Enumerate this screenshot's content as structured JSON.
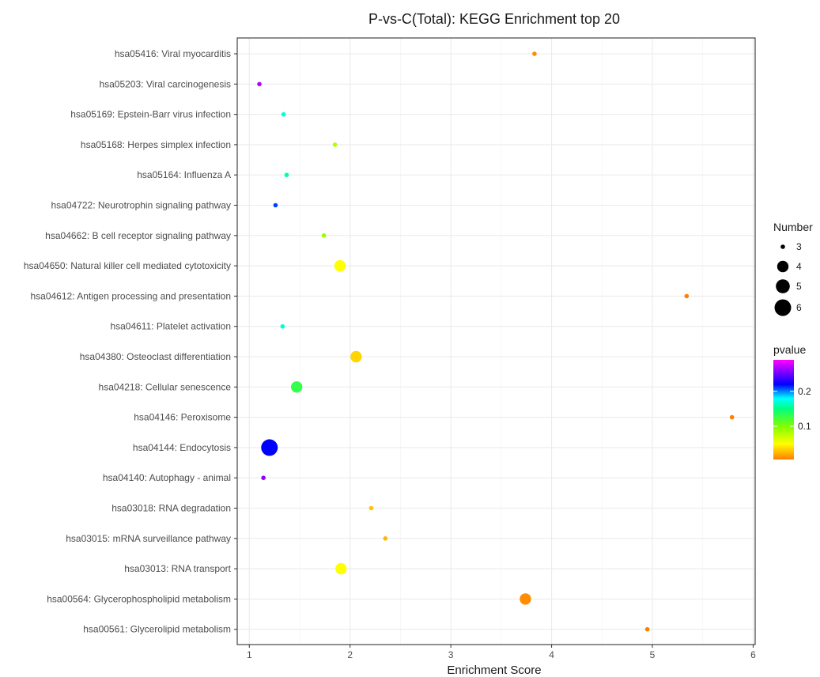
{
  "chart_data": {
    "type": "scatter",
    "title": "P-vs-C(Total): KEGG Enrichment top 20",
    "xlabel": "Enrichment Score",
    "ylabel": "",
    "xlim": [
      0.88,
      6.02
    ],
    "xticks": [
      1,
      2,
      3,
      4,
      5,
      6
    ],
    "grid": true,
    "categories": [
      "hsa05416: Viral myocarditis",
      "hsa05203: Viral carcinogenesis",
      "hsa05169: Epstein-Barr virus infection",
      "hsa05168: Herpes simplex infection",
      "hsa05164: Influenza A",
      "hsa04722: Neurotrophin signaling pathway",
      "hsa04662: B cell receptor signaling pathway",
      "hsa04650: Natural killer cell mediated cytotoxicity",
      "hsa04612: Antigen processing and presentation",
      "hsa04611: Platelet activation",
      "hsa04380: Osteoclast differentiation",
      "hsa04218: Cellular senescence",
      "hsa04146: Peroxisome",
      "hsa04144: Endocytosis",
      "hsa04140: Autophagy - animal",
      "hsa03018: RNA degradation",
      "hsa03015: mRNA surveillance pathway",
      "hsa03013: RNA transport",
      "hsa00564: Glycerophospholipid metabolism",
      "hsa00561: Glycerolipid metabolism"
    ],
    "points": [
      {
        "x": 3.83,
        "number": 3,
        "pvalue": 0.01
      },
      {
        "x": 1.1,
        "number": 3,
        "pvalue": 0.27
      },
      {
        "x": 1.34,
        "number": 3,
        "pvalue": 0.17
      },
      {
        "x": 1.85,
        "number": 3,
        "pvalue": 0.08
      },
      {
        "x": 1.37,
        "number": 3,
        "pvalue": 0.16
      },
      {
        "x": 1.26,
        "number": 3,
        "pvalue": 0.21
      },
      {
        "x": 1.74,
        "number": 3,
        "pvalue": 0.09
      },
      {
        "x": 1.9,
        "number": 4,
        "pvalue": 0.05
      },
      {
        "x": 5.34,
        "number": 3,
        "pvalue": 0.004
      },
      {
        "x": 1.33,
        "number": 3,
        "pvalue": 0.17
      },
      {
        "x": 2.06,
        "number": 4,
        "pvalue": 0.035
      },
      {
        "x": 1.47,
        "number": 4,
        "pvalue": 0.13
      },
      {
        "x": 5.79,
        "number": 3,
        "pvalue": 0.003
      },
      {
        "x": 1.2,
        "number": 6,
        "pvalue": 0.22
      },
      {
        "x": 1.14,
        "number": 3,
        "pvalue": 0.26
      },
      {
        "x": 2.21,
        "number": 3,
        "pvalue": 0.03
      },
      {
        "x": 2.35,
        "number": 3,
        "pvalue": 0.025
      },
      {
        "x": 1.91,
        "number": 4,
        "pvalue": 0.05
      },
      {
        "x": 3.74,
        "number": 4,
        "pvalue": 0.01
      },
      {
        "x": 4.95,
        "number": 3,
        "pvalue": 0.005
      }
    ],
    "size_legend": {
      "title": "Number",
      "values": [
        3,
        4,
        5,
        6
      ],
      "labels": [
        "3",
        "4",
        "5",
        "6"
      ]
    },
    "color_legend": {
      "title": "pvalue",
      "range": [
        0.005,
        0.29
      ],
      "breaks": [
        0.2,
        0.1
      ],
      "labels": [
        "0.2",
        "0.1"
      ],
      "stops": [
        {
          "p": 0.005,
          "color": "#ff7f00"
        },
        {
          "p": 0.05,
          "color": "#ffff00"
        },
        {
          "p": 0.1,
          "color": "#80ff00"
        },
        {
          "p": 0.15,
          "color": "#00ff80"
        },
        {
          "p": 0.18,
          "color": "#00ffff"
        },
        {
          "p": 0.22,
          "color": "#0000ff"
        },
        {
          "p": 0.29,
          "color": "#ff00ff"
        }
      ]
    },
    "legend_position": "right"
  }
}
